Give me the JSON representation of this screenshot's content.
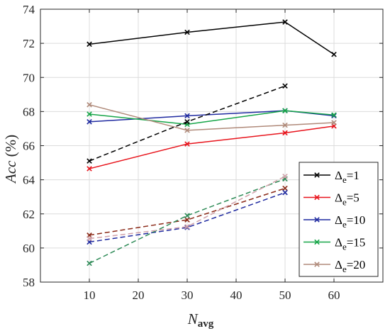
{
  "chart_data": {
    "type": "line",
    "xlabel": "N",
    "xlabel_sub": "avg",
    "ylabel_italic": "Acc",
    "ylabel_unit": "(%)",
    "xlim": [
      0,
      70
    ],
    "ylim": [
      58,
      74
    ],
    "xticks": [
      10,
      20,
      30,
      40,
      50,
      60
    ],
    "yticks": [
      58,
      60,
      62,
      64,
      66,
      68,
      70,
      72,
      74
    ],
    "grid": true,
    "legend_position": "lower-right",
    "legend": [
      {
        "prefix": "Δ",
        "sub": "e",
        "suffix": "=1",
        "color": "#000000"
      },
      {
        "prefix": "Δ",
        "sub": "e",
        "suffix": "=5",
        "color": "#e8141c"
      },
      {
        "prefix": "Δ",
        "sub": "e",
        "suffix": "=10",
        "color": "#1f2aa0"
      },
      {
        "prefix": "Δ",
        "sub": "e",
        "suffix": "=15",
        "color": "#15a547"
      },
      {
        "prefix": "Δ",
        "sub": "e",
        "suffix": "=20",
        "color": "#b08a7a"
      }
    ],
    "series": [
      {
        "delta": 1,
        "style": "solid",
        "color": "#000000",
        "x": [
          10,
          30,
          50,
          60
        ],
        "y": [
          71.95,
          72.65,
          73.25,
          71.35
        ]
      },
      {
        "delta": 5,
        "style": "solid",
        "color": "#e8141c",
        "x": [
          10,
          30,
          50,
          60
        ],
        "y": [
          64.65,
          66.1,
          66.75,
          67.15
        ]
      },
      {
        "delta": 10,
        "style": "solid",
        "color": "#1f2aa0",
        "x": [
          10,
          30,
          50,
          60
        ],
        "y": [
          67.4,
          67.75,
          68.05,
          67.75
        ]
      },
      {
        "delta": 15,
        "style": "solid",
        "color": "#15a547",
        "x": [
          10,
          30,
          50,
          60
        ],
        "y": [
          67.85,
          67.25,
          68.05,
          67.8
        ]
      },
      {
        "delta": 20,
        "style": "solid",
        "color": "#b08a7a",
        "x": [
          10,
          30,
          50,
          60
        ],
        "y": [
          68.4,
          66.9,
          67.2,
          67.35
        ]
      },
      {
        "delta": 1,
        "style": "dashed",
        "color": "#000000",
        "x": [
          10,
          30,
          50
        ],
        "y": [
          65.1,
          67.4,
          69.5
        ]
      },
      {
        "delta": 5,
        "style": "dashed",
        "color": "#8b2a18",
        "x": [
          10,
          30,
          50
        ],
        "y": [
          60.75,
          61.65,
          63.5
        ]
      },
      {
        "delta": 10,
        "style": "dashed",
        "color": "#1f2aa0",
        "x": [
          10,
          30,
          50
        ],
        "y": [
          60.35,
          61.2,
          63.25
        ]
      },
      {
        "delta": 15,
        "style": "dashed",
        "color": "#2e8b57",
        "x": [
          10,
          30,
          50
        ],
        "y": [
          59.1,
          61.9,
          64.05
        ]
      },
      {
        "delta": 20,
        "style": "dashed",
        "color": "#d0a0a8",
        "x": [
          10,
          30,
          50
        ],
        "y": [
          60.55,
          61.25,
          64.2
        ]
      }
    ]
  }
}
